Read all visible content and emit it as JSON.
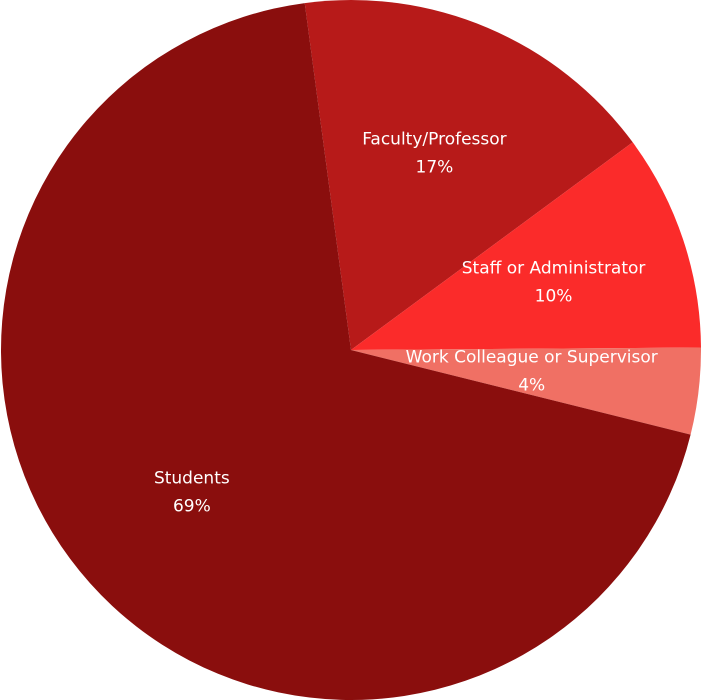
{
  "chart_data": {
    "type": "pie",
    "categories": [
      "Faculty/Professor",
      "Staff or Administrator",
      "Work Colleague or Supervisor",
      "Students"
    ],
    "values": [
      17,
      10,
      4,
      69
    ],
    "value_labels": [
      "17%",
      "10%",
      "4%",
      "69%"
    ],
    "colors": [
      "#b71a19",
      "#fb2b2a",
      "#f07064",
      "#8a0e0d"
    ]
  }
}
